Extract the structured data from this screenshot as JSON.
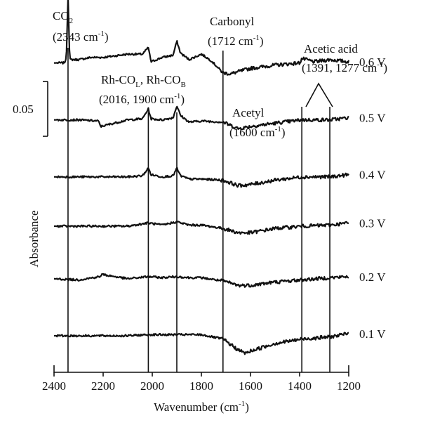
{
  "chart_data": {
    "type": "line",
    "xlabel": "Wavenumber (cm⁻¹)",
    "ylabel": "Absorbance",
    "xlim": [
      2400,
      1200
    ],
    "x_reversed": true,
    "x_ticks": [
      2400,
      2200,
      2000,
      1800,
      1600,
      1400,
      1200
    ],
    "y_ticks": [],
    "grid": false,
    "scale_bar": {
      "label": "0.05",
      "value": 0.05
    },
    "series": [
      {
        "name": "0.6 V",
        "offset": 0.249,
        "points": [
          [
            2400,
            0.0
          ],
          [
            2360,
            0.0
          ],
          [
            2350,
            0.003
          ],
          [
            2343,
            0.061
          ],
          [
            2336,
            0.003
          ],
          [
            2300,
            0.003
          ],
          [
            2250,
            0.005
          ],
          [
            2200,
            0.005
          ],
          [
            2100,
            0.008
          ],
          [
            2040,
            0.008
          ],
          [
            2016,
            0.014
          ],
          [
            2005,
            0.001
          ],
          [
            1960,
            0.005
          ],
          [
            1915,
            0.007
          ],
          [
            1900,
            0.02
          ],
          [
            1885,
            0.009
          ],
          [
            1850,
            0.003
          ],
          [
            1800,
            0.008
          ],
          [
            1760,
            0.002
          ],
          [
            1712,
            -0.009
          ],
          [
            1680,
            -0.01
          ],
          [
            1650,
            -0.008
          ],
          [
            1600,
            -0.005
          ],
          [
            1500,
            -0.002
          ],
          [
            1400,
            0.0
          ],
          [
            1391,
            0.004
          ],
          [
            1340,
            0.001
          ],
          [
            1277,
            0.003
          ],
          [
            1200,
            0.001
          ]
        ]
      },
      {
        "name": "0.5 V",
        "offset": 0.197,
        "points": [
          [
            2400,
            0.0
          ],
          [
            2300,
            0.0
          ],
          [
            2220,
            -0.001
          ],
          [
            2210,
            -0.006
          ],
          [
            2100,
            0.0
          ],
          [
            2040,
            0.001
          ],
          [
            2016,
            0.01
          ],
          [
            2005,
            0.001
          ],
          [
            1960,
            0.0
          ],
          [
            1915,
            0.002
          ],
          [
            1900,
            0.013
          ],
          [
            1885,
            0.004
          ],
          [
            1850,
            -0.002
          ],
          [
            1800,
            -0.001
          ],
          [
            1712,
            -0.002
          ],
          [
            1650,
            -0.008
          ],
          [
            1600,
            -0.006
          ],
          [
            1500,
            -0.003
          ],
          [
            1391,
            0.0
          ],
          [
            1277,
            0.0
          ],
          [
            1200,
            0.002
          ]
        ]
      },
      {
        "name": "0.4 V",
        "offset": 0.145,
        "points": [
          [
            2400,
            0.0
          ],
          [
            2300,
            0.0
          ],
          [
            2100,
            0.0
          ],
          [
            2040,
            0.001
          ],
          [
            2016,
            0.008
          ],
          [
            2005,
            0.002
          ],
          [
            1960,
            0.0
          ],
          [
            1915,
            0.001
          ],
          [
            1900,
            0.008
          ],
          [
            1885,
            0.001
          ],
          [
            1850,
            -0.002
          ],
          [
            1800,
            -0.002
          ],
          [
            1712,
            -0.003
          ],
          [
            1650,
            -0.008
          ],
          [
            1600,
            -0.007
          ],
          [
            1500,
            -0.003
          ],
          [
            1391,
            0.0
          ],
          [
            1277,
            0.0
          ],
          [
            1200,
            0.002
          ]
        ]
      },
      {
        "name": "0.3 V",
        "offset": 0.1,
        "points": [
          [
            2400,
            0.0
          ],
          [
            2300,
            0.0
          ],
          [
            2100,
            0.0
          ],
          [
            2016,
            0.003
          ],
          [
            1960,
            0.001
          ],
          [
            1900,
            0.004
          ],
          [
            1850,
            0.001
          ],
          [
            1800,
            0.001
          ],
          [
            1712,
            -0.002
          ],
          [
            1650,
            -0.006
          ],
          [
            1600,
            -0.006
          ],
          [
            1500,
            -0.002
          ],
          [
            1391,
            0.0
          ],
          [
            1277,
            0.001
          ],
          [
            1200,
            0.003
          ]
        ]
      },
      {
        "name": "0.2 V",
        "offset": 0.052,
        "points": [
          [
            2400,
            0.0
          ],
          [
            2300,
            -0.001
          ],
          [
            2212,
            0.002
          ],
          [
            2205,
            0.004
          ],
          [
            2100,
            0.0
          ],
          [
            2016,
            0.002
          ],
          [
            1960,
            0.001
          ],
          [
            1900,
            0.002
          ],
          [
            1850,
            0.001
          ],
          [
            1800,
            0.001
          ],
          [
            1712,
            -0.002
          ],
          [
            1650,
            -0.006
          ],
          [
            1600,
            -0.006
          ],
          [
            1500,
            -0.003
          ],
          [
            1391,
            -0.001
          ],
          [
            1277,
            0.001
          ],
          [
            1200,
            0.002
          ]
        ]
      },
      {
        "name": "0.1 V",
        "offset": 0.0,
        "points": [
          [
            2400,
            0.0
          ],
          [
            2300,
            0.0
          ],
          [
            2100,
            0.0
          ],
          [
            2016,
            0.001
          ],
          [
            1900,
            0.001
          ],
          [
            1800,
            0.001
          ],
          [
            1712,
            -0.003
          ],
          [
            1650,
            -0.013
          ],
          [
            1620,
            -0.016
          ],
          [
            1600,
            -0.014
          ],
          [
            1500,
            -0.007
          ],
          [
            1391,
            -0.003
          ],
          [
            1277,
            -0.001
          ],
          [
            1200,
            0.002
          ]
        ]
      }
    ],
    "marker_lines": [
      2343,
      2016,
      1900,
      1712,
      1391,
      1277
    ],
    "annotations": {
      "co2": {
        "main": "CO",
        "sub": "2",
        "value": "(2343 cm",
        "sup": "-1",
        "close": ")"
      },
      "rhco": {
        "main1": "Rh-CO",
        "sub1": "L",
        "sep": ", ",
        "main2": "Rh-CO",
        "sub2": "B",
        "value": "(2016, 1900 cm",
        "sup": "-1",
        "close": ")"
      },
      "carbonyl": {
        "name": "Carbonyl",
        "value": "(1712 cm",
        "sup": "-1",
        "close": ")"
      },
      "acetyl": {
        "name": "Acetyl",
        "value": "(1600 cm",
        "sup": "-1",
        "close": ")"
      },
      "acetic": {
        "name": "Acetic acid",
        "value": "(1391, 1277 cm",
        "sup": "-1",
        "close": ")"
      }
    },
    "xlabel_parts": {
      "main": "Wavenumber (cm",
      "sup": "-1",
      "close": ")"
    }
  }
}
